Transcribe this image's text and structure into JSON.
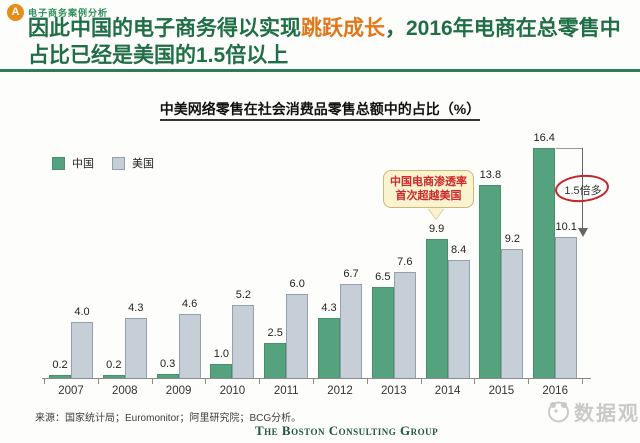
{
  "header": {
    "badge": "A",
    "eyebrow": "电子商务案例分析",
    "title_seg1": "因此中国的电子商务得以实现",
    "title_highlight": "跳跃成长",
    "title_seg2": "，2016年电商在总零售中占比已经是美国的1.5倍以上"
  },
  "chart": {
    "callout": {
      "line1": "中国电商渗透率",
      "line2": "首次超越美国"
    },
    "ratio_label": "1.5倍多"
  },
  "chart_data": {
    "type": "bar",
    "title": "中美网络零售在社会消费品零售总额中的占比（%）",
    "categories": [
      "2007",
      "2008",
      "2009",
      "2010",
      "2011",
      "2012",
      "2013",
      "2014",
      "2015",
      "2016"
    ],
    "series": [
      {
        "name": "中国",
        "color": "#55a37e",
        "border": "#4a8e6c",
        "values": [
          0.2,
          0.2,
          0.3,
          1.0,
          2.5,
          4.3,
          6.5,
          9.9,
          13.8,
          16.4
        ]
      },
      {
        "name": "美国",
        "color": "#c6cfd7",
        "border": "#93a1ac",
        "values": [
          4.0,
          4.3,
          4.6,
          5.2,
          6.0,
          6.7,
          7.6,
          8.4,
          9.2,
          10.1
        ]
      }
    ],
    "ylim": [
      0,
      17
    ],
    "grid": false,
    "legend_position": "top-left",
    "annotations": [
      "中国电商渗透率首次超越美国",
      "1.5倍多"
    ]
  },
  "colors": {
    "title_green": "#1f6e45",
    "highlight_orange": "#e2761a",
    "badge_orange": "#e78c17",
    "annotation_red": "#c4262c"
  },
  "footer": {
    "source": "来源：国家统计局；Euromonitor；阿里研究院；BCG分析。",
    "bcg": "The Boston Consulting Group",
    "watermark": "数据观"
  }
}
